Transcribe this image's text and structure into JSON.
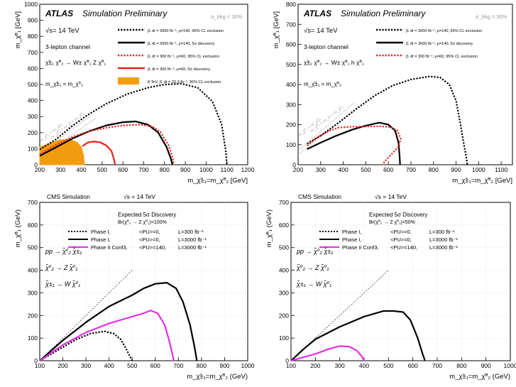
{
  "chart_data": [
    {
      "type": "line",
      "id": "atlas-wz",
      "title": "ATLAS",
      "subtitle": "Simulation Preliminary",
      "sigma_label": "σ_bkg = 30%",
      "energy": "√s= 14 TeV",
      "channel": "3-lepton channel",
      "process": "χ̃±₁ χ̃⁰₂ → W± χ̃⁰₁ Z χ̃⁰₁",
      "diagonal_label": "m_χ̃±₁ = m_χ̃⁰₂",
      "diag_annotations": [
        "m_χ̃⁰₁ = m_χ̃±₁",
        "m_χ̃⁰₁ + m_Z = m_χ̃⁰₂"
      ],
      "xlabel": "m_χ̃±₁=m_χ̃⁰₂ [GeV]",
      "ylabel": "m_χ̃⁰₁ [GeV]",
      "xlim": [
        200,
        1200
      ],
      "ylim": [
        0,
        1000
      ],
      "xticks": [
        200,
        300,
        400,
        500,
        600,
        700,
        800,
        900,
        1000,
        1100,
        1200
      ],
      "yticks": [
        0,
        100,
        200,
        300,
        400,
        500,
        600,
        700,
        800,
        900,
        1000
      ],
      "series": [
        {
          "name": "∫L dt = 3000 fb⁻¹, μ=140, 95% CL exclusion",
          "style": "dotted",
          "color": "#000000",
          "x": [
            200,
            280,
            350,
            430,
            520,
            620,
            720,
            800,
            880,
            960,
            1030,
            1075,
            1095,
            1100
          ],
          "y": [
            95,
            160,
            235,
            310,
            380,
            440,
            480,
            500,
            505,
            480,
            395,
            250,
            80,
            0
          ]
        },
        {
          "name": "∫L dt = 3000 fb⁻¹, μ=140, 5σ discovery",
          "style": "solid",
          "color": "#000000",
          "x": [
            200,
            280,
            360,
            440,
            520,
            600,
            660,
            720,
            770,
            810,
            830,
            838
          ],
          "y": [
            55,
            110,
            165,
            210,
            245,
            265,
            270,
            250,
            200,
            110,
            40,
            0
          ]
        },
        {
          "name": "∫L dt = 300 fb⁻¹, μ=60, 95% CL exclusion",
          "style": "dotted",
          "color": "#e8221c",
          "x": [
            200,
            280,
            360,
            440,
            520,
            600,
            680,
            740,
            780,
            820,
            840,
            845
          ],
          "y": [
            65,
            125,
            175,
            210,
            230,
            245,
            250,
            240,
            205,
            120,
            40,
            0
          ]
        },
        {
          "name": "∫L dt = 300 fb⁻¹, μ=60, 5σ discovery",
          "style": "solid",
          "color": "#e8221c",
          "x": [
            405,
            430,
            460,
            490,
            520,
            545,
            558,
            562
          ],
          "y": [
            115,
            138,
            145,
            140,
            120,
            85,
            30,
            0
          ]
        }
      ],
      "filled": {
        "name": "8 TeV, ∫L dt = 20.3 fb⁻¹, 95% CL exclusion",
        "color": "#f39c12",
        "x": [
          200,
          260,
          300,
          345,
          380,
          400,
          410,
          415
        ],
        "y": [
          110,
          140,
          155,
          158,
          140,
          110,
          60,
          0
        ]
      }
    },
    {
      "type": "line",
      "id": "atlas-wh",
      "title": "ATLAS",
      "subtitle": "Simulation Preliminary",
      "sigma_label": "σ_bkg = 30%",
      "energy": "√s= 14 TeV",
      "channel": "3-lepton channel",
      "process": "χ̃±₁ χ̃⁰₂ → W± χ̃⁰₁ h χ̃⁰₁",
      "diagonal_label": "m_χ̃±₁ = m_χ̃⁰₂",
      "diag_annotations": [
        "m_χ̃⁰₁ = m_χ̃±₁",
        "m_χ̃⁰₁ + m_h = m_χ̃⁰₂"
      ],
      "xlabel": "m_χ̃±₁=m_χ̃⁰₂ [GeV]",
      "ylabel": "m_χ̃⁰₁ [GeV]",
      "xlim": [
        200,
        1150
      ],
      "ylim": [
        0,
        800
      ],
      "xticks": [
        200,
        300,
        400,
        500,
        600,
        700,
        800,
        900,
        1000,
        1100
      ],
      "yticks": [
        0,
        100,
        200,
        300,
        400,
        500,
        600,
        700,
        800
      ],
      "series": [
        {
          "name": "∫L dt = 3000 fb⁻¹, μ=140, 95% CL exclusion",
          "style": "dotted",
          "color": "#000000",
          "x": [
            240,
            300,
            380,
            460,
            540,
            620,
            700,
            780,
            830,
            870,
            900,
            920,
            935,
            945,
            950
          ],
          "y": [
            105,
            145,
            210,
            280,
            345,
            395,
            425,
            440,
            435,
            400,
            320,
            200,
            100,
            40,
            0
          ]
        },
        {
          "name": "∫L dt = 3000 fb⁻¹, μ=140, 5σ discovery",
          "style": "solid",
          "color": "#000000",
          "x": [
            240,
            300,
            370,
            440,
            500,
            560,
            600,
            630,
            645,
            650,
            652
          ],
          "y": [
            78,
            110,
            145,
            175,
            195,
            210,
            200,
            170,
            110,
            40,
            0
          ]
        },
        {
          "name": "∫L dt = 300 fb⁻¹, μ=60, 95% CL exclusion",
          "style": "dotted",
          "color": "#e8221c",
          "x": [
            240,
            290,
            340,
            380,
            440,
            500,
            560,
            610,
            640,
            655,
            645,
            620,
            595,
            580,
            575
          ],
          "y": [
            95,
            140,
            170,
            185,
            190,
            190,
            192,
            188,
            170,
            130,
            90,
            60,
            30,
            10,
            0
          ]
        }
      ]
    },
    {
      "type": "line",
      "id": "cms-wz-100",
      "header": "CMS Simulation",
      "energy": "√s = 14 TeV",
      "legend_title": "Expected 5σ Discovery",
      "br_label": "Br(χ̃⁰₂ → Z χ̃⁰₁)=100%",
      "process_lines": [
        "pp → χ̃⁰₂ χ̃±₁",
        "χ̃⁰₂ → Z χ̃⁰₁",
        "χ̃±₁ → W χ̃⁰₁"
      ],
      "xlabel": "m_χ̃±₁=m_χ̃⁰₂ (GeV)",
      "ylabel": "m_χ̃⁰₁ (GeV)",
      "xlim": [
        100,
        1000
      ],
      "ylim": [
        0,
        700
      ],
      "xticks": [
        100,
        200,
        300,
        400,
        500,
        600,
        700,
        800,
        900,
        1000
      ],
      "yticks": [
        0,
        100,
        200,
        300,
        400,
        500,
        600,
        700
      ],
      "series": [
        {
          "name": "Phase I,",
          "pu": "<PU>=0,",
          "lumi": "L=300 fb⁻¹",
          "style": "dotted",
          "color": "#000000",
          "x": [
            100,
            150,
            200,
            260,
            320,
            380,
            420,
            450,
            470,
            490,
            500
          ],
          "y": [
            0,
            30,
            60,
            95,
            120,
            130,
            120,
            95,
            60,
            20,
            0
          ]
        },
        {
          "name": "Phase I,",
          "pu": "<PU>=0,",
          "lumi": "L=3000 fb⁻¹",
          "style": "solid",
          "color": "#000000",
          "x": [
            100,
            150,
            200,
            300,
            400,
            500,
            550,
            600,
            650,
            690,
            720,
            750,
            770,
            780
          ],
          "y": [
            0,
            45,
            90,
            170,
            240,
            290,
            320,
            340,
            345,
            320,
            260,
            160,
            60,
            0
          ]
        },
        {
          "name": "Phase II Conf3,",
          "pu": "<PU>=140,",
          "lumi": "L=3000 fb⁻¹",
          "style": "solid",
          "color": "#e32fe3",
          "x": [
            100,
            150,
            200,
            300,
            400,
            500,
            550,
            580,
            610,
            640,
            660,
            675,
            680
          ],
          "y": [
            0,
            35,
            70,
            125,
            165,
            195,
            210,
            222,
            210,
            160,
            90,
            25,
            0
          ]
        }
      ]
    },
    {
      "type": "line",
      "id": "cms-wz-50",
      "header": "CMS Simulation",
      "energy": "√s = 14 TeV",
      "legend_title": "Expected 5σ Discovery",
      "br_label": "Br(χ̃⁰₂ → Z χ̃⁰₁)=50%",
      "process_lines": [
        "pp → χ̃⁰₂ χ̃±₁",
        "χ̃⁰₂ → Z χ̃⁰₁",
        "χ̃±₁ → W χ̃⁰₁"
      ],
      "xlabel": "m_χ̃±₁=m_χ̃⁰₂ (GeV)",
      "ylabel": "m_χ̃⁰₁ (GeV)",
      "xlim": [
        100,
        1000
      ],
      "ylim": [
        0,
        700
      ],
      "xticks": [
        100,
        200,
        300,
        400,
        500,
        600,
        700,
        800,
        900,
        1000
      ],
      "yticks": [
        0,
        100,
        200,
        300,
        400,
        500,
        600,
        700
      ],
      "series": [
        {
          "name": "Phase I,",
          "pu": "<PU>=0,",
          "lumi": "L=300 fb⁻¹",
          "style": "dotted",
          "color": "#000000",
          "x": [],
          "y": []
        },
        {
          "name": "Phase I,",
          "pu": "<PU>=0,",
          "lumi": "L=3000 fb⁻¹",
          "style": "solid",
          "color": "#000000",
          "x": [
            100,
            150,
            200,
            300,
            400,
            480,
            520,
            560,
            590,
            620,
            640,
            650
          ],
          "y": [
            0,
            50,
            95,
            150,
            195,
            220,
            220,
            215,
            180,
            100,
            30,
            0
          ]
        },
        {
          "name": "Phase II Conf3,",
          "pu": "<PU>=140,",
          "lumi": "L=3000 fb⁻¹",
          "style": "solid",
          "color": "#e32fe3",
          "x": [
            100,
            150,
            200,
            250,
            300,
            340,
            370,
            390,
            400
          ],
          "y": [
            0,
            15,
            30,
            50,
            65,
            62,
            45,
            20,
            0
          ]
        }
      ]
    }
  ]
}
